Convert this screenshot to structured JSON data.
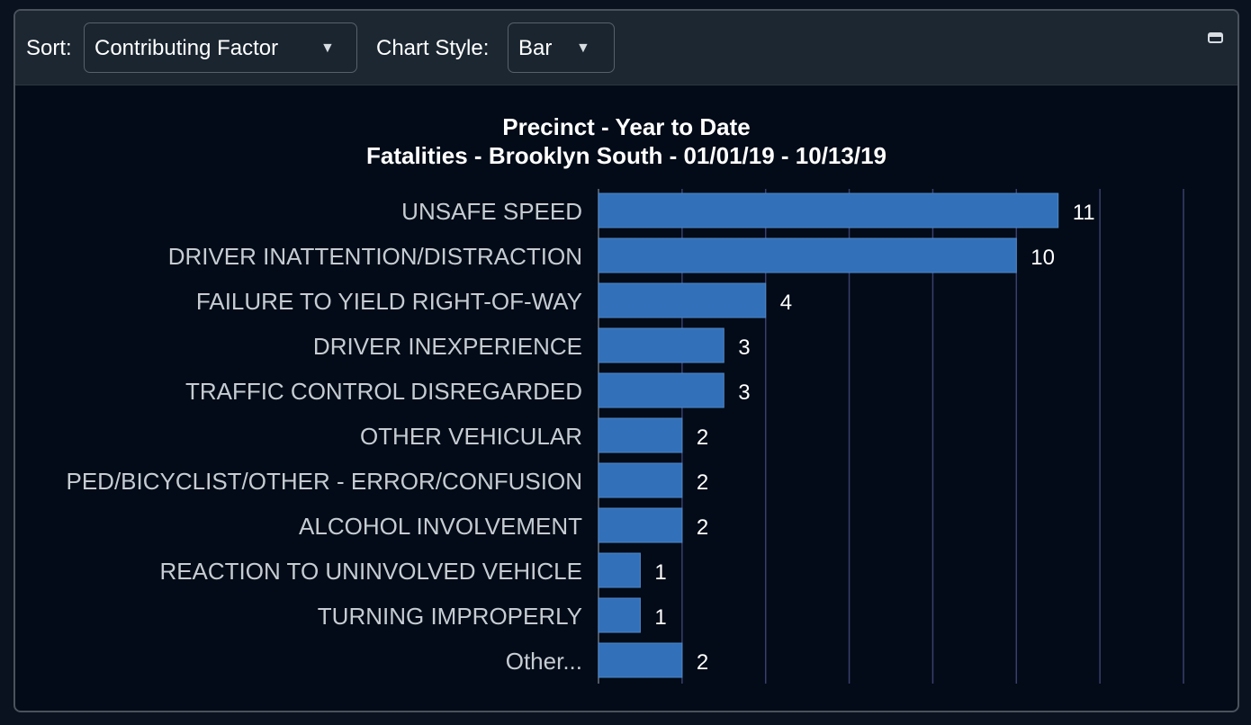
{
  "toolbar": {
    "sort_label": "Sort:",
    "sort_value": "Contributing Factor",
    "chart_style_label": "Chart Style:",
    "chart_style_value": "Bar",
    "dropdown_arrow": "▼",
    "restore_icon": "window-restore-icon"
  },
  "colors": {
    "bar": "#3270b9",
    "grid": "#3a3f6e",
    "label": "#c6ccd2",
    "value": "#ffffff"
  },
  "chart_data": {
    "type": "bar",
    "orientation": "horizontal",
    "title": "Precinct - Year to Date",
    "subtitle": "Fatalities - Brooklyn South - 01/01/19 - 10/13/19",
    "categories": [
      "UNSAFE SPEED",
      "DRIVER INATTENTION/DISTRACTION",
      "FAILURE TO YIELD RIGHT-OF-WAY",
      "DRIVER INEXPERIENCE",
      "TRAFFIC CONTROL DISREGARDED",
      "OTHER VEHICULAR",
      "PED/BICYCLIST/OTHER - ERROR/CONFUSION",
      "ALCOHOL INVOLVEMENT",
      "REACTION TO UNINVOLVED VEHICLE",
      "TURNING IMPROPERLY",
      "Other..."
    ],
    "values": [
      11,
      10,
      4,
      3,
      3,
      2,
      2,
      2,
      1,
      1,
      2
    ],
    "xlim": [
      0,
      14
    ],
    "grid": true,
    "data_labels": true
  }
}
